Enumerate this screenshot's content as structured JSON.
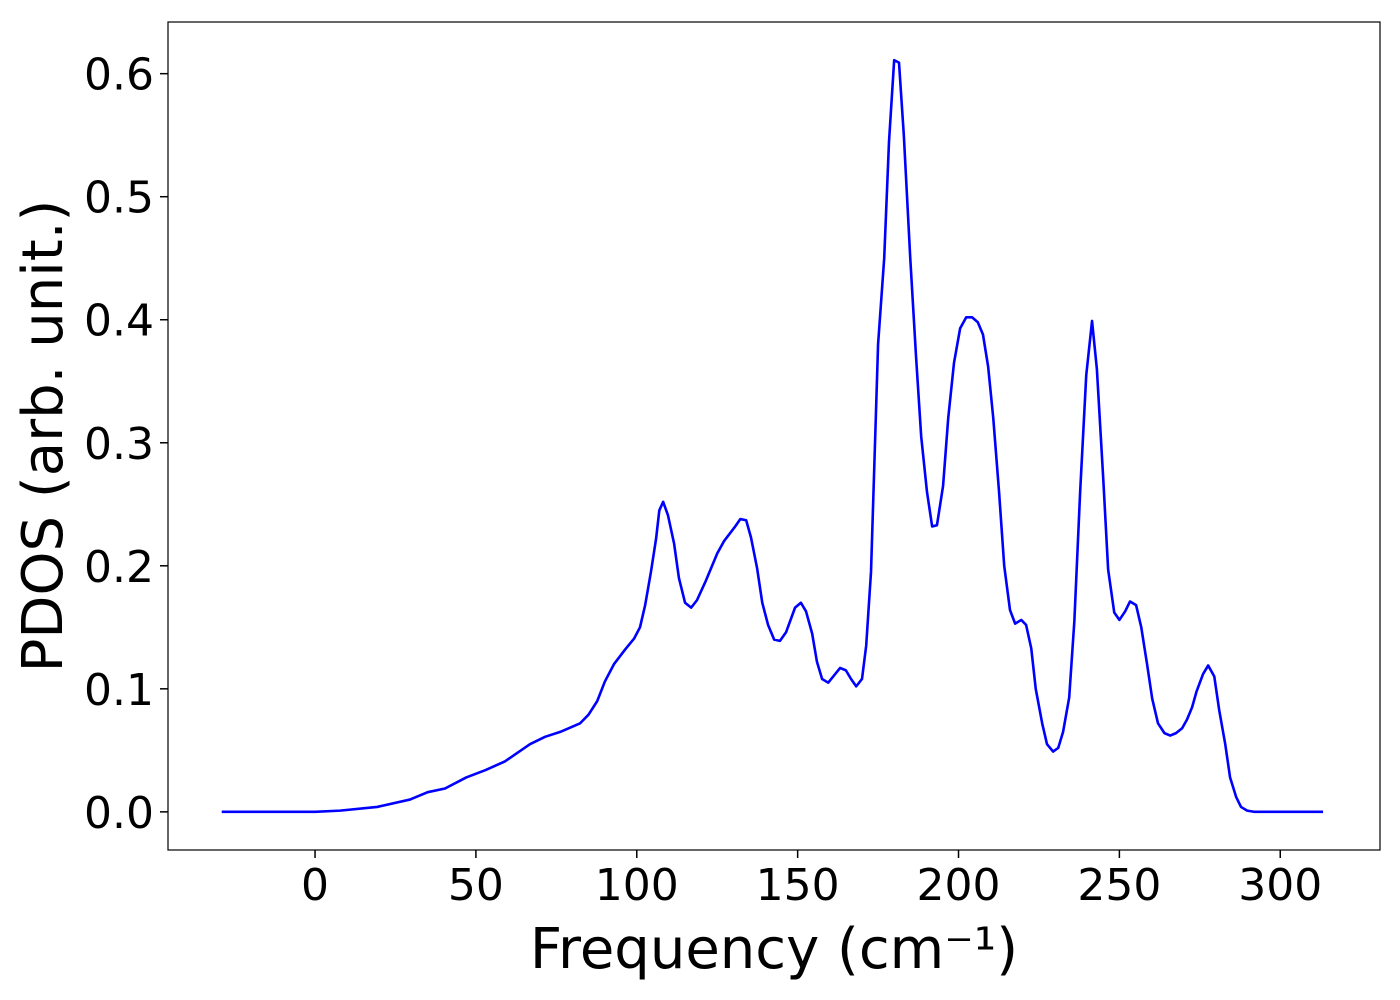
{
  "chart_data": {
    "type": "line",
    "xlabel": "Frequency (cm⁻¹)",
    "ylabel": "PDOS (arb. unit.)",
    "color": "#0000ff",
    "x": [
      -29,
      0,
      7.8,
      19.3,
      29.5,
      35,
      40.4,
      47,
      53,
      59,
      66.8,
      71.5,
      76.2,
      82.4,
      85,
      87.7,
      90.1,
      92.9,
      96.4,
      99.2,
      101,
      102.6,
      104.4,
      106,
      107,
      108.2,
      109.7,
      111.6,
      113.1,
      115,
      116.9,
      118.7,
      121.5,
      125,
      127.1,
      130.6,
      132.2,
      134,
      135.5,
      137.4,
      139,
      140.8,
      142.7,
      144.5,
      146.4,
      149.2,
      151,
      152.6,
      154.5,
      156,
      157.6,
      159.5,
      163.2,
      165,
      166.6,
      168.2,
      170,
      171.3,
      172.8,
      175,
      176.9,
      178.4,
      180,
      181.5,
      183,
      185,
      186.8,
      188.4,
      190.2,
      191.8,
      193.3,
      195.2,
      196.8,
      198.6,
      200.5,
      202.4,
      204.2,
      206,
      207.6,
      209.2,
      210.8,
      212.6,
      214.2,
      216,
      217.6,
      219.5,
      221,
      222.6,
      224,
      226,
      227.5,
      229.4,
      231,
      232.5,
      234.4,
      236,
      237.8,
      239.7,
      241.5,
      243,
      245,
      246.5,
      248.4,
      250,
      251.8,
      253.3,
      255.2,
      256.8,
      258.6,
      260.2,
      262,
      264,
      265.8,
      267.6,
      269.5,
      271,
      272.6,
      274,
      276,
      277.6,
      279.5,
      281,
      282.9,
      284.4,
      286.3,
      287.8,
      289.7,
      292,
      313.3
    ],
    "values": [
      0,
      0,
      0.001,
      0.004,
      0.01,
      0.016,
      0.019,
      0.028,
      0.034,
      0.041,
      0.055,
      0.061,
      0.065,
      0.072,
      0.079,
      0.09,
      0.106,
      0.12,
      0.132,
      0.141,
      0.15,
      0.168,
      0.195,
      0.222,
      0.245,
      0.252,
      0.241,
      0.218,
      0.19,
      0.17,
      0.166,
      0.172,
      0.188,
      0.21,
      0.22,
      0.232,
      0.238,
      0.237,
      0.223,
      0.198,
      0.17,
      0.152,
      0.14,
      0.139,
      0.146,
      0.166,
      0.17,
      0.163,
      0.145,
      0.122,
      0.108,
      0.105,
      0.117,
      0.115,
      0.108,
      0.102,
      0.108,
      0.135,
      0.195,
      0.38,
      0.45,
      0.545,
      0.611,
      0.609,
      0.55,
      0.45,
      0.37,
      0.305,
      0.26,
      0.232,
      0.233,
      0.265,
      0.32,
      0.365,
      0.393,
      0.402,
      0.402,
      0.398,
      0.388,
      0.362,
      0.32,
      0.26,
      0.2,
      0.164,
      0.153,
      0.156,
      0.152,
      0.133,
      0.1,
      0.072,
      0.055,
      0.049,
      0.052,
      0.065,
      0.093,
      0.155,
      0.26,
      0.355,
      0.399,
      0.36,
      0.27,
      0.197,
      0.162,
      0.156,
      0.163,
      0.171,
      0.168,
      0.15,
      0.12,
      0.092,
      0.072,
      0.064,
      0.062,
      0.064,
      0.068,
      0.075,
      0.085,
      0.098,
      0.112,
      0.119,
      0.11,
      0.083,
      0.055,
      0.028,
      0.012,
      0.004,
      0.001,
      0,
      0
    ],
    "xlim": [
      -45.7,
      331
    ],
    "ylim": [
      -0.031,
      0.642
    ],
    "xticks": [
      0,
      50,
      100,
      150,
      200,
      250,
      300
    ],
    "yticks": [
      {
        "value": 0,
        "label": "0.0"
      },
      0.1,
      0.2,
      0.3,
      0.4,
      0.5,
      0.6
    ],
    "grid": false
  }
}
